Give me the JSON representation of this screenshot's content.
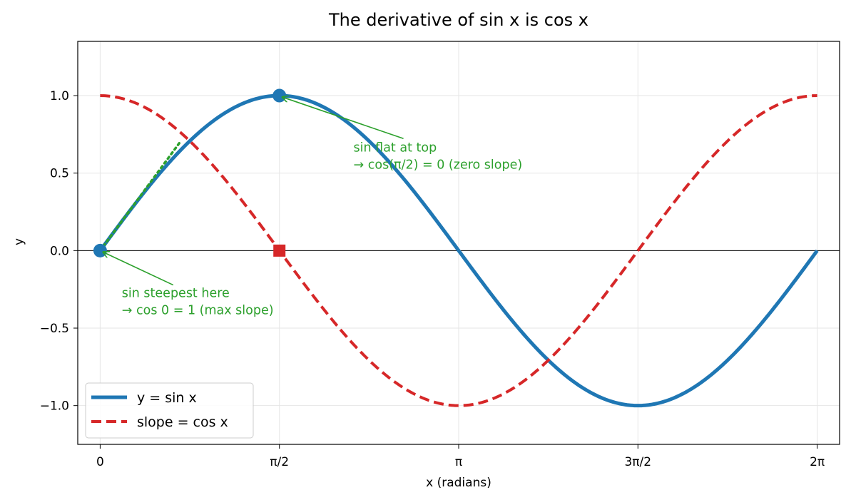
{
  "chart_data": {
    "type": "line",
    "title": "The derivative of sin x is cos x",
    "xlabel": "x (radians)",
    "ylabel": "y",
    "xlim": [
      -0.1963,
      6.4795
    ],
    "ylim": [
      -1.25,
      1.35
    ],
    "grid": true,
    "legend_position": "lower-left",
    "x_ticks": [
      {
        "value": 0,
        "label": "0"
      },
      {
        "value": 1.5708,
        "label": "π/2"
      },
      {
        "value": 3.1416,
        "label": "π"
      },
      {
        "value": 4.7124,
        "label": "3π/2"
      },
      {
        "value": 6.2832,
        "label": "2π"
      }
    ],
    "y_ticks": [
      {
        "value": -1.0,
        "label": "−1.0"
      },
      {
        "value": -0.5,
        "label": "−0.5"
      },
      {
        "value": 0.0,
        "label": "0.0"
      },
      {
        "value": 0.5,
        "label": "0.5"
      },
      {
        "value": 1.0,
        "label": "1.0"
      }
    ],
    "series": [
      {
        "name": "y = sin x",
        "function": "sin",
        "x_range": [
          0,
          6.2832
        ],
        "color": "#1f77b4",
        "style": "solid"
      },
      {
        "name": "slope = cos x",
        "function": "cos",
        "x_range": [
          0,
          6.2832
        ],
        "color": "#d62728",
        "style": "dashed"
      }
    ],
    "tangent_line": {
      "x": [
        0,
        0.7
      ],
      "y": [
        0,
        0.7
      ],
      "color": "#2ca02c",
      "style": "dotted"
    },
    "markers": [
      {
        "x": 0,
        "y": 0,
        "shape": "circle",
        "color": "#1f77b4"
      },
      {
        "x": 1.5708,
        "y": 1.0,
        "shape": "circle",
        "color": "#1f77b4"
      },
      {
        "x": 1.5708,
        "y": 0.0,
        "shape": "square",
        "color": "#d62728"
      }
    ],
    "annotations": [
      {
        "lines": [
          "sin steepest here",
          "→ cos 0 = 1 (max slope)"
        ],
        "point": [
          0,
          0
        ],
        "text_at": [
          0.19,
          -0.3
        ],
        "color": "#2ca02c"
      },
      {
        "lines": [
          "sin flat at top",
          "→ cos(π/2) = 0 (zero slope)"
        ],
        "point": [
          1.5708,
          1.0
        ],
        "text_at": [
          2.22,
          0.64
        ],
        "color": "#2ca02c"
      }
    ],
    "zero_line": {
      "y": 0,
      "color": "#000000"
    }
  }
}
